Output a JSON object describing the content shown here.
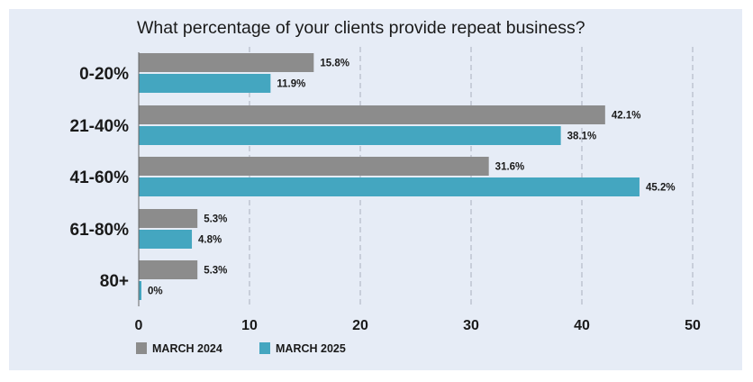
{
  "chart_data": {
    "type": "bar",
    "orientation": "horizontal",
    "title": "What percentage of your clients provide repeat business?",
    "categories": [
      "0-20%",
      "21-40%",
      "41-60%",
      "61-80%",
      "80+"
    ],
    "series": [
      {
        "name": "MARCH 2024",
        "color": "#8c8c8c",
        "values": [
          15.8,
          42.1,
          31.6,
          5.3,
          5.3
        ],
        "labels": [
          "15.8%",
          "42.1%",
          "31.6%",
          "5.3%",
          "5.3%"
        ]
      },
      {
        "name": "MARCH 2025",
        "color": "#44a6c0",
        "values": [
          11.9,
          38.1,
          45.2,
          4.8,
          0
        ],
        "labels": [
          "11.9%",
          "38.1%",
          "45.2%",
          "4.8%",
          "0%"
        ]
      }
    ],
    "xlim": [
      0,
      50
    ],
    "xticks": [
      0,
      10,
      20,
      30,
      40,
      50
    ],
    "xlabel": "",
    "ylabel": "",
    "grid": "vertical-dashed",
    "legend_position": "bottom-left"
  },
  "colors": {
    "background": "#e6ecf6",
    "grid": "#a9b1bf",
    "axis": "#666666"
  }
}
